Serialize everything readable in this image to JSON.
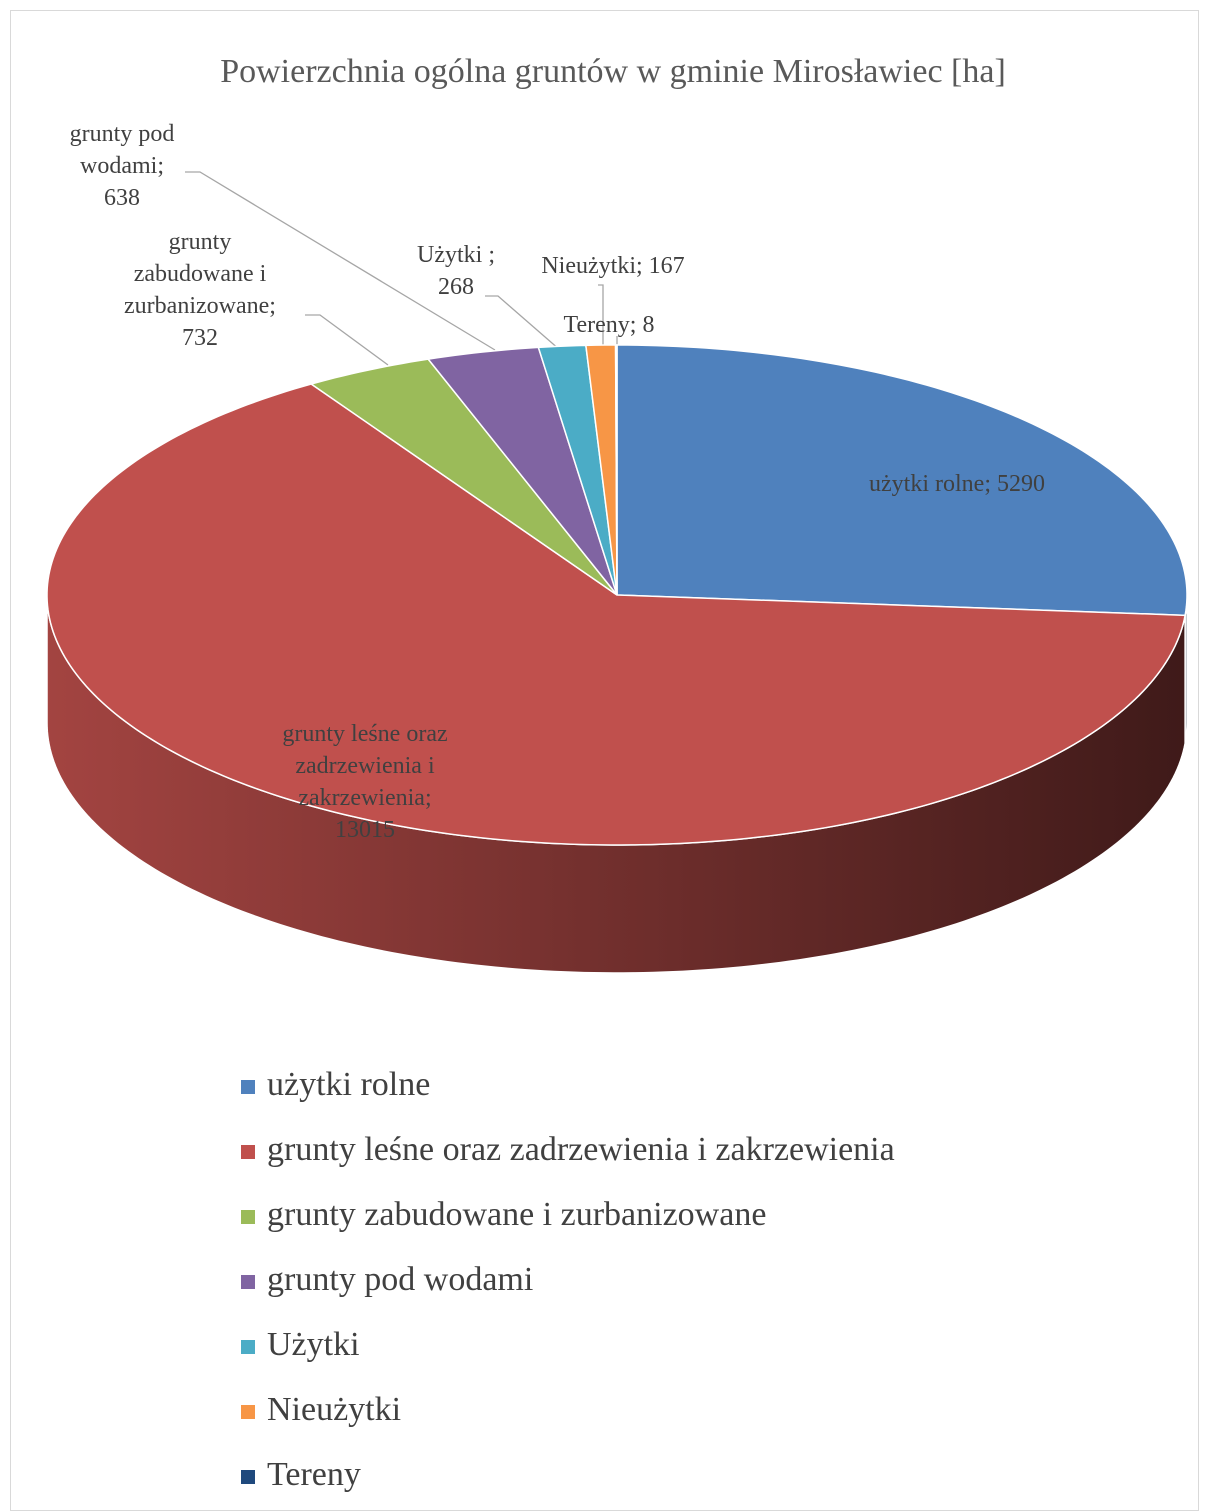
{
  "chart_data": {
    "type": "pie",
    "title": "Powierzchnia ogólna gruntów w gminie Mirosławiec [ha]",
    "categories": [
      "użytki rolne",
      "grunty leśne oraz zadrzewienia i zakrzewienia",
      "grunty zabudowane i zurbanizowane",
      "grunty pod wodami",
      "Użytki",
      "Nieużytki",
      "Tereny"
    ],
    "values": [
      5290,
      13015,
      732,
      638,
      268,
      167,
      8
    ],
    "value_labels": [
      "użytki rolne; 5290",
      "grunty leśne oraz zadrzewienia i zakrzewienia; 13015",
      "grunty zabudowane i zurbanizowane; 732",
      "grunty pod wodami; 638",
      "Użytki ; 268",
      "Nieużytki; 167",
      "Tereny; 8"
    ],
    "colors": [
      "#4f81bd",
      "#c0504d",
      "#9bbb59",
      "#8064a2",
      "#4bacc6",
      "#f79646",
      "#1f497d"
    ],
    "legend": "bottom"
  }
}
